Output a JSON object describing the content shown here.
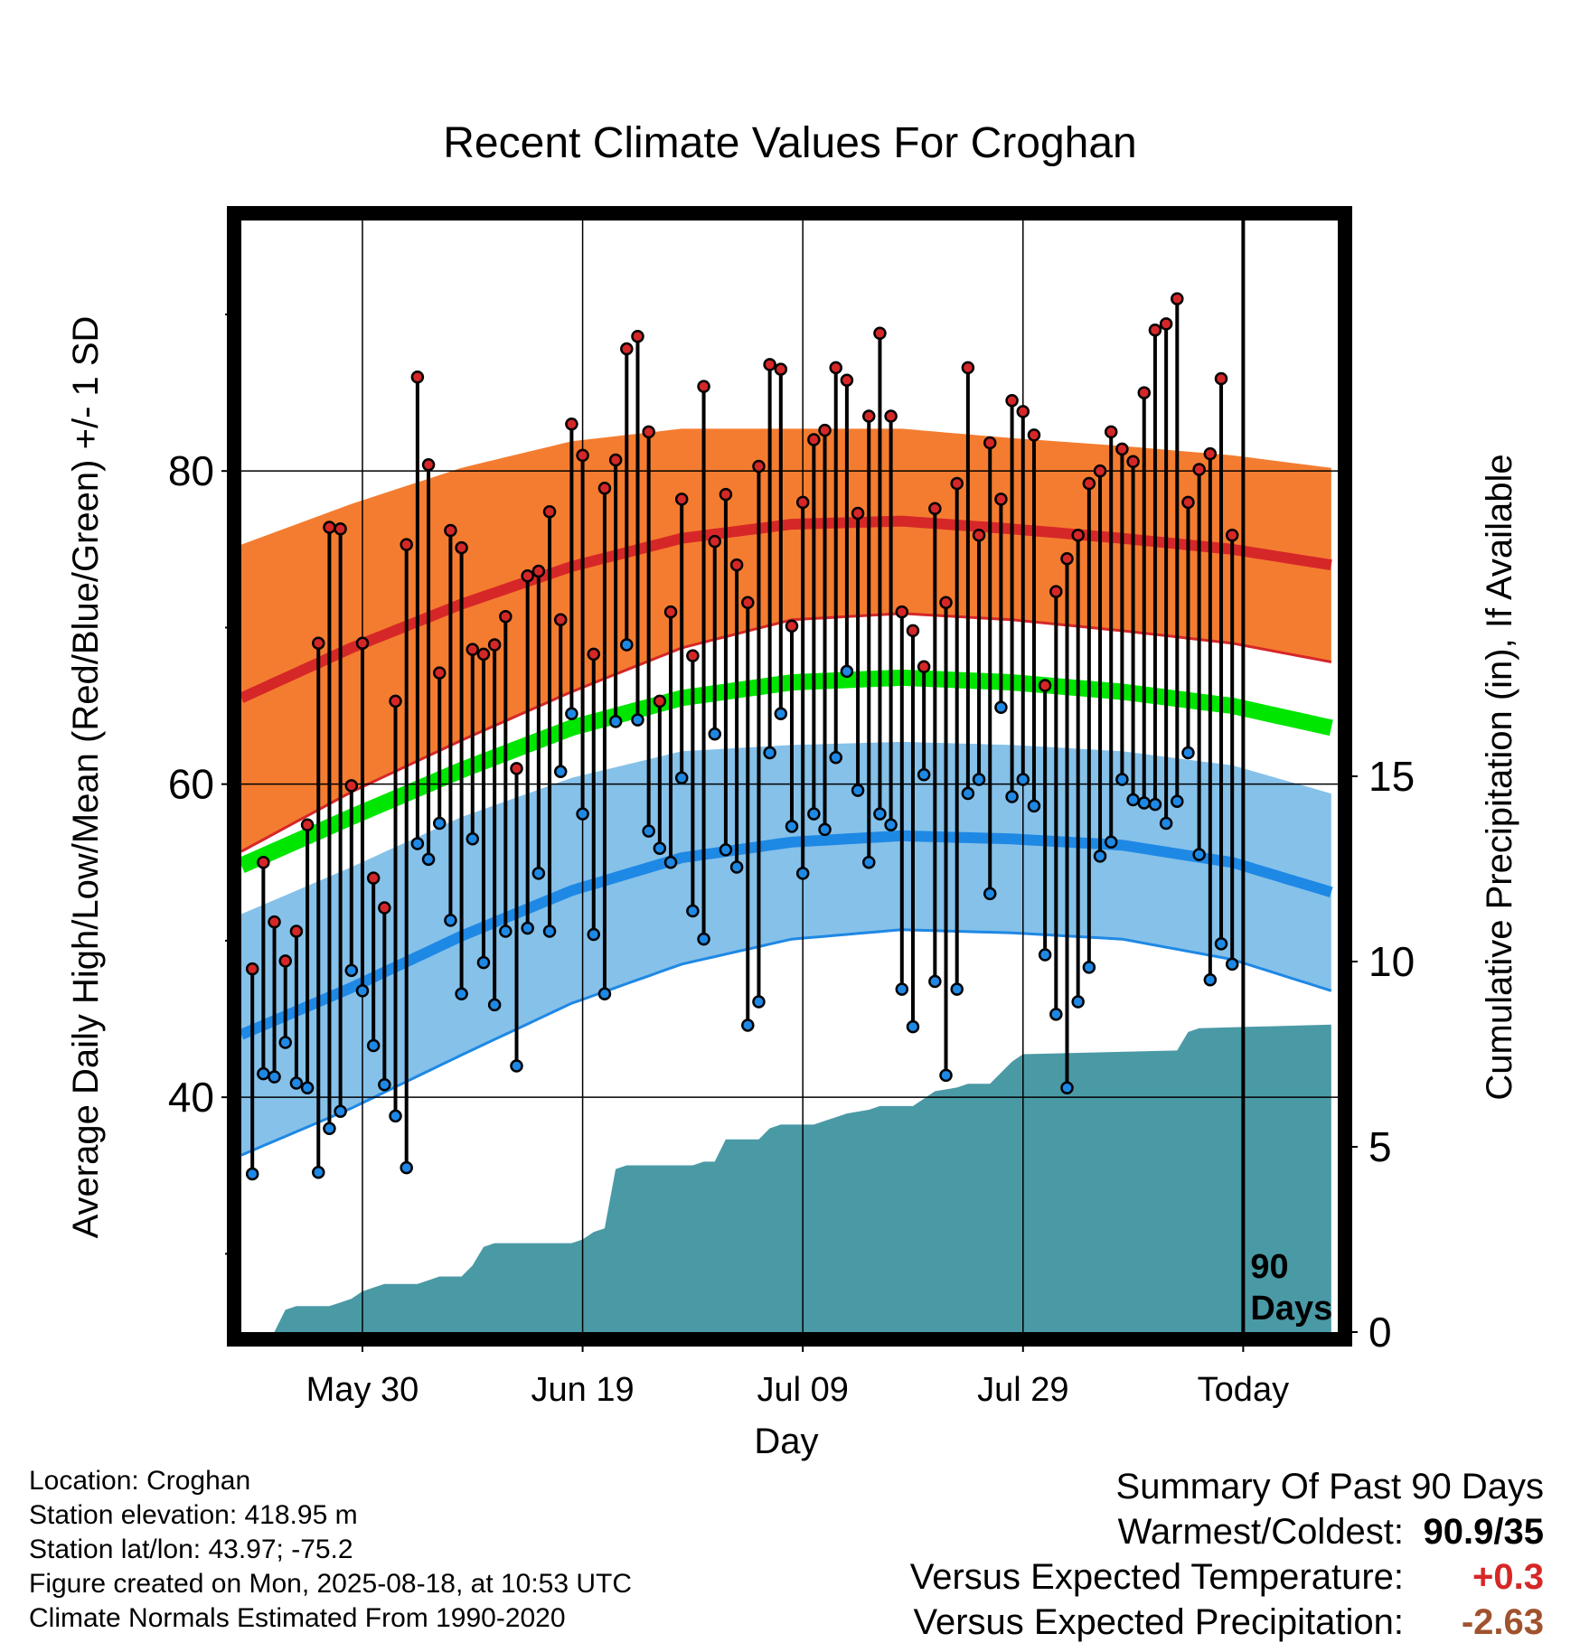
{
  "chart_data": {
    "type": "line",
    "title": "Recent Climate Values For Croghan",
    "xlabel": "Day",
    "ylabel": "Average Daily High/Low/Mean (Red/Blue/Green) +/- 1 SD",
    "y2label": "Cumulative Precipitation (in), If Available",
    "x_tick_labels": [
      "May 30",
      "Jun 19",
      "Jul 09",
      "Jul 29",
      "Today"
    ],
    "x_tick_days": [
      11,
      31,
      51,
      71,
      91
    ],
    "ylim": [
      25,
      96
    ],
    "y_ticks": [
      40,
      60,
      80
    ],
    "y2lim": [
      0,
      30
    ],
    "y2_ticks": [
      0,
      5,
      10,
      15
    ],
    "grid": true,
    "marker_label": "90 Days",
    "normals": {
      "days": [
        0,
        10,
        20,
        30,
        40,
        50,
        60,
        70,
        80,
        90,
        99
      ],
      "high_mean": [
        65.5,
        68.7,
        71.5,
        73.9,
        75.7,
        76.6,
        76.8,
        76.3,
        75.7,
        75.0,
        74.0
      ],
      "high_sd": [
        9.8,
        9.2,
        8.7,
        8.0,
        7.0,
        6.1,
        5.9,
        5.8,
        5.9,
        6.0,
        6.2
      ],
      "low_mean": [
        44.0,
        47.0,
        50.3,
        53.2,
        55.3,
        56.3,
        56.7,
        56.5,
        56.1,
        55.0,
        53.1
      ],
      "low_sd": [
        7.7,
        7.7,
        7.6,
        7.2,
        6.8,
        6.2,
        6.0,
        6.0,
        6.0,
        6.2,
        6.3
      ],
      "mean": [
        54.8,
        57.9,
        60.9,
        63.6,
        65.5,
        66.5,
        66.8,
        66.5,
        65.9,
        65.0,
        63.6
      ]
    },
    "series": [
      {
        "name": "High",
        "color": "#d62728",
        "values": [
          48.2,
          55.0,
          51.2,
          48.7,
          50.6,
          57.4,
          69.0,
          76.4,
          76.3,
          59.9,
          69.0,
          54.0,
          52.1,
          65.3,
          75.3,
          86.0,
          80.4,
          67.1,
          76.2,
          75.1,
          68.6,
          68.3,
          68.9,
          70.7,
          61.0,
          73.3,
          73.6,
          77.4,
          70.5,
          83.0,
          81.0,
          68.3,
          78.9,
          80.7,
          87.8,
          88.6,
          82.5,
          65.3,
          71.0,
          78.2,
          68.2,
          85.4,
          75.5,
          78.5,
          74.0,
          71.6,
          80.3,
          86.8,
          86.5,
          70.1,
          78.0,
          82.0,
          82.6,
          86.6,
          85.8,
          77.3,
          83.5,
          88.8,
          83.5,
          71.0,
          69.8,
          67.5,
          77.6,
          71.6,
          79.2,
          86.6,
          75.9,
          81.8,
          78.2,
          84.5,
          83.8,
          82.3,
          66.3,
          72.3,
          74.4,
          75.9,
          79.2,
          80.0,
          82.5,
          81.4,
          80.6,
          85.0,
          89.0,
          89.4,
          91.0,
          78.0,
          80.1,
          81.1,
          85.9,
          75.9
        ]
      },
      {
        "name": "Low",
        "color": "#1e88e5",
        "values": [
          35.1,
          41.5,
          41.3,
          43.5,
          40.9,
          40.6,
          35.2,
          38.0,
          39.1,
          48.1,
          46.8,
          43.3,
          40.8,
          38.8,
          35.5,
          56.2,
          55.2,
          57.5,
          51.3,
          46.6,
          56.5,
          48.6,
          45.9,
          50.6,
          42.0,
          50.8,
          54.3,
          50.6,
          60.8,
          64.5,
          58.1,
          50.4,
          46.6,
          64.0,
          68.9,
          64.1,
          57.0,
          55.9,
          55.0,
          60.4,
          51.9,
          50.1,
          63.2,
          55.8,
          54.7,
          44.6,
          46.1,
          62.0,
          64.5,
          57.3,
          54.3,
          58.1,
          57.1,
          61.7,
          67.2,
          59.6,
          55.0,
          58.1,
          57.4,
          46.9,
          44.5,
          60.6,
          47.4,
          41.4,
          46.9,
          59.4,
          60.3,
          53.0,
          64.9,
          59.2,
          60.3,
          58.6,
          49.1,
          45.3,
          40.6,
          46.1,
          48.3,
          55.4,
          56.3,
          60.3,
          59.0,
          58.8,
          58.7,
          57.5,
          58.9,
          62.0,
          55.5,
          47.5,
          49.8,
          48.5
        ]
      },
      {
        "name": "Cumulative Precipitation",
        "color": "#4a9aa6",
        "x": [
          0,
          3,
          4,
          5,
          7,
          8,
          9,
          10,
          11,
          12,
          13,
          14,
          15,
          16,
          17,
          18,
          19,
          20,
          21,
          22,
          23,
          24,
          25,
          26,
          27,
          28,
          29,
          30,
          31,
          32,
          33,
          34,
          35,
          36,
          40,
          41,
          42,
          43,
          44,
          46,
          47,
          48,
          49,
          50,
          51,
          52,
          53,
          54,
          55,
          57,
          58,
          59,
          60,
          61,
          62,
          63,
          65,
          66,
          67,
          68,
          69,
          70,
          71,
          85,
          86,
          87,
          99
        ],
        "values": [
          0,
          0,
          0.6,
          0.7,
          0.7,
          0.7,
          0.8,
          0.9,
          1.1,
          1.2,
          1.3,
          1.3,
          1.3,
          1.3,
          1.4,
          1.5,
          1.5,
          1.5,
          1.8,
          2.3,
          2.4,
          2.4,
          2.4,
          2.4,
          2.4,
          2.4,
          2.4,
          2.4,
          2.5,
          2.7,
          2.8,
          4.4,
          4.5,
          4.5,
          4.5,
          4.5,
          4.6,
          4.6,
          5.2,
          5.2,
          5.2,
          5.5,
          5.6,
          5.6,
          5.6,
          5.6,
          5.7,
          5.8,
          5.9,
          6.0,
          6.1,
          6.1,
          6.1,
          6.1,
          6.3,
          6.5,
          6.6,
          6.7,
          6.7,
          6.7,
          7.0,
          7.3,
          7.5,
          7.6,
          8.1,
          8.2,
          8.3
        ]
      }
    ]
  },
  "info": {
    "location": "Location: Croghan",
    "elevation": "Station elevation: 418.95 m",
    "latlon": "Station lat/lon: 43.97; -75.2",
    "created": "Figure created on Mon, 2025-08-18, at 10:53 UTC",
    "normals": "Climate Normals Estimated From 1990-2020"
  },
  "summary": {
    "title": "Summary Of Past 90 Days",
    "warmest_label": "Warmest/Coldest:",
    "warmest_value": "90.9/35",
    "temp_label": "Versus Expected Temperature:",
    "temp_value": "+0.3",
    "precip_label": "Versus Expected Precipitation:",
    "precip_value": "-2.63"
  }
}
